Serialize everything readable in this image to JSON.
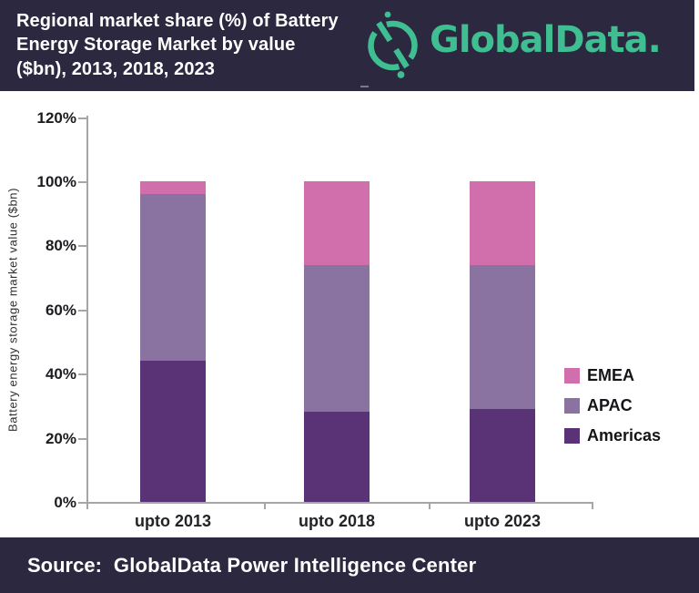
{
  "header": {
    "title": "Regional market share (%) of Battery\nEnergy Storage Market by value\n($bn), 2013, 2018, 2023",
    "brand": "GlobalData.",
    "brand_color": "#3ebe91",
    "background_color": "#2b2840"
  },
  "footer": {
    "label": "Source:",
    "text": "GlobalData Power Intelligence Center"
  },
  "chart_data": {
    "type": "bar",
    "subtype": "stacked-percent",
    "title": "Regional market share (%) of Battery Energy Storage Market by value ($bn), 2013, 2018, 2023",
    "categories": [
      "upto 2013",
      "upto 2018",
      "upto 2023"
    ],
    "series": [
      {
        "name": "Americas",
        "color": "#5a3377",
        "values": [
          44,
          28,
          29
        ]
      },
      {
        "name": "APAC",
        "color": "#8b73a1",
        "values": [
          52,
          46,
          45
        ]
      },
      {
        "name": "EMEA",
        "color": "#d06fac",
        "values": [
          4,
          26,
          26
        ]
      }
    ],
    "xlabel": "",
    "ylabel": "Battery energy storage market value ($bn)",
    "y_ticks": [
      "0%",
      "20%",
      "40%",
      "60%",
      "80%",
      "100%",
      "120%"
    ],
    "y_tick_values": [
      0,
      20,
      40,
      60,
      80,
      100,
      120
    ],
    "ylim": [
      0,
      120
    ],
    "grid": false,
    "legend_position": "right",
    "legend_order": [
      "EMEA",
      "APAC",
      "Americas"
    ]
  }
}
